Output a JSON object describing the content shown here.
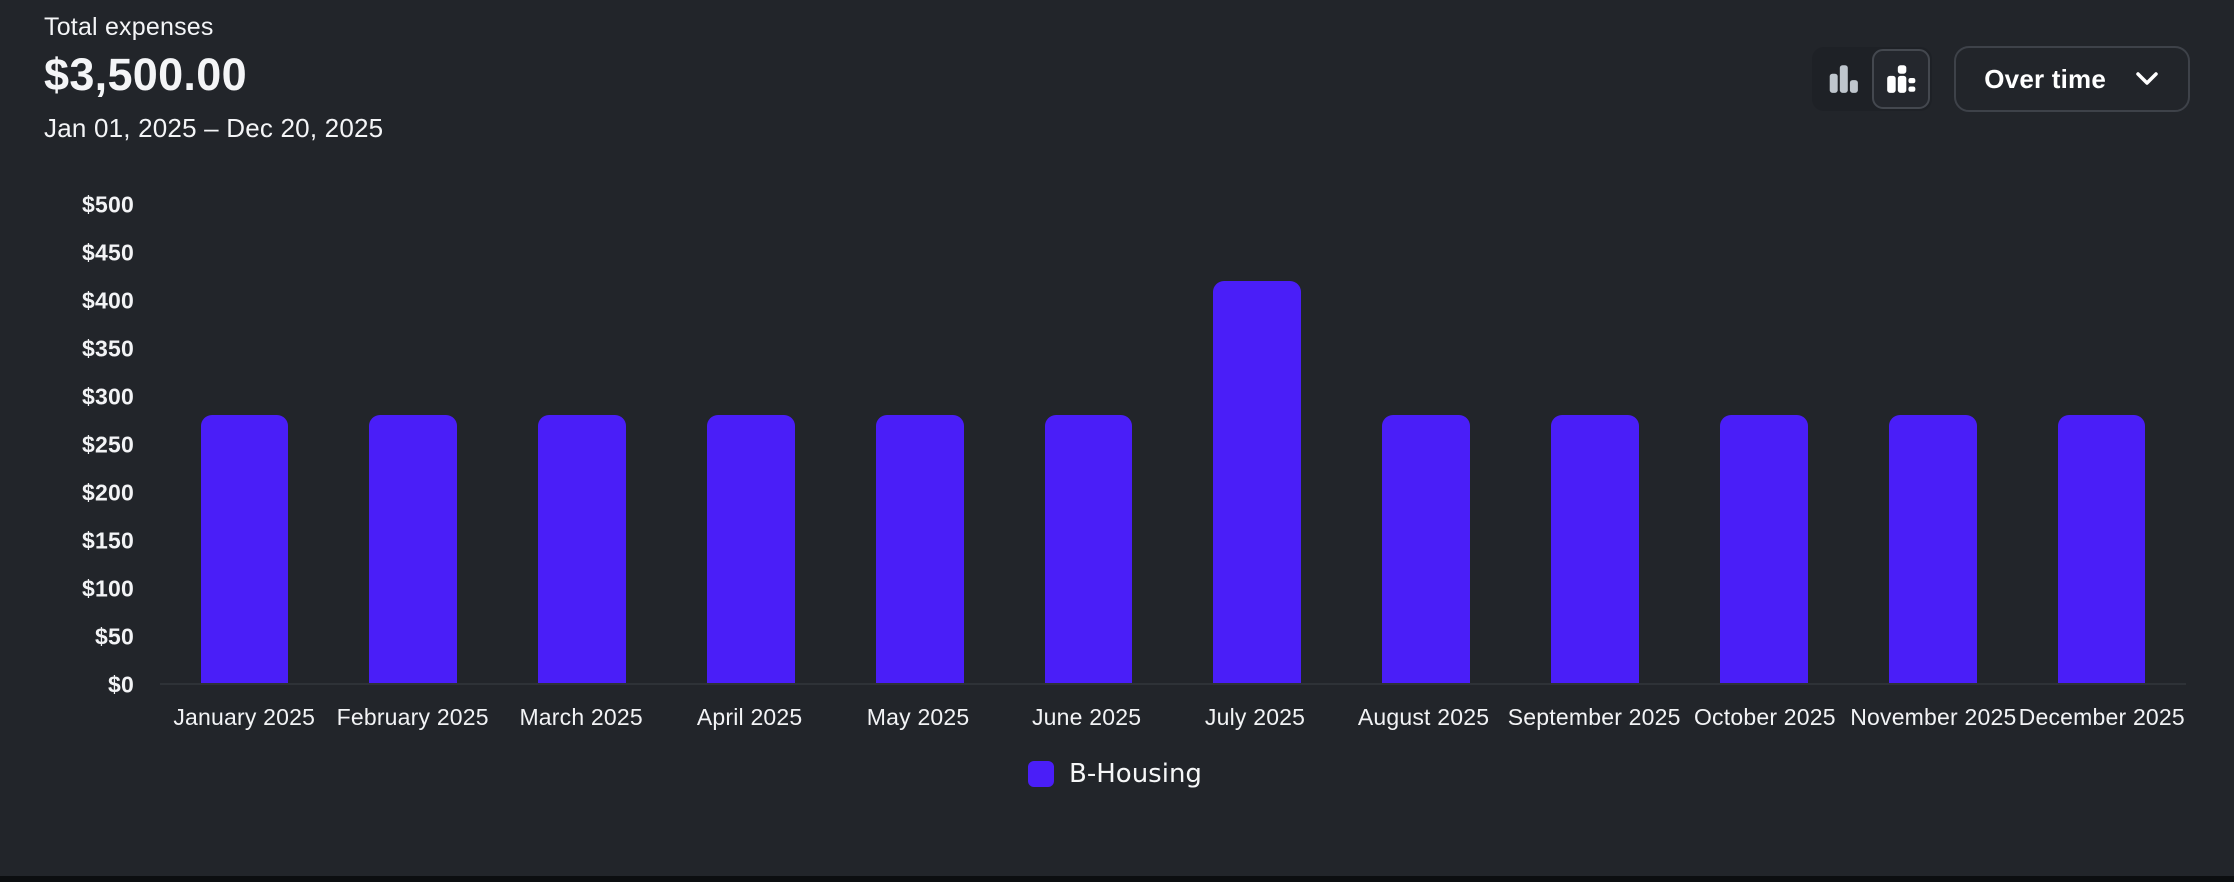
{
  "header": {
    "title": "Total expenses",
    "total": "$3,500.00",
    "date_range": "Jan 01, 2025 – Dec 20, 2025"
  },
  "toolbar": {
    "chart_type_toggle": {
      "options": [
        {
          "icon": "bar-chart-icon",
          "selected": false
        },
        {
          "icon": "stacked-chart-icon",
          "selected": true
        }
      ]
    },
    "view_select": {
      "value": "Over time",
      "icon": "chevron-down-icon"
    }
  },
  "chart_data": {
    "type": "bar",
    "title": "",
    "xlabel": "",
    "ylabel": "",
    "categories": [
      "January 2025",
      "February 2025",
      "March 2025",
      "April 2025",
      "May 2025",
      "June 2025",
      "July 2025",
      "August 2025",
      "September 2025",
      "October 2025",
      "November 2025",
      "December 2025"
    ],
    "series": [
      {
        "name": "B-Housing",
        "color": "#4a1ef8",
        "values": [
          280,
          280,
          280,
          280,
          280,
          280,
          420,
          280,
          280,
          280,
          280,
          280
        ]
      }
    ],
    "ylim": [
      0,
      500
    ],
    "ytick_step": 50,
    "yticks": [
      {
        "value": 500,
        "label": "$500"
      },
      {
        "value": 450,
        "label": "$450"
      },
      {
        "value": 400,
        "label": "$400"
      },
      {
        "value": 350,
        "label": "$350"
      },
      {
        "value": 300,
        "label": "$300"
      },
      {
        "value": 250,
        "label": "$250"
      },
      {
        "value": 200,
        "label": "$200"
      },
      {
        "value": 150,
        "label": "$150"
      },
      {
        "value": 100,
        "label": "$100"
      },
      {
        "value": 50,
        "label": "$50"
      },
      {
        "value": 0,
        "label": "$0"
      }
    ],
    "grid": false,
    "legend_position": "bottom",
    "legend": [
      {
        "label": "B-Housing",
        "color": "#4a1ef8"
      }
    ]
  },
  "colors": {
    "background": "#22252a",
    "bar": "#4a1ef8",
    "text": "#f4f5f7",
    "muted_icon": "#bfc6cd",
    "button_border": "#3e4249",
    "baseline": "#2e3237",
    "bottom_strip": "#0c0e10"
  }
}
